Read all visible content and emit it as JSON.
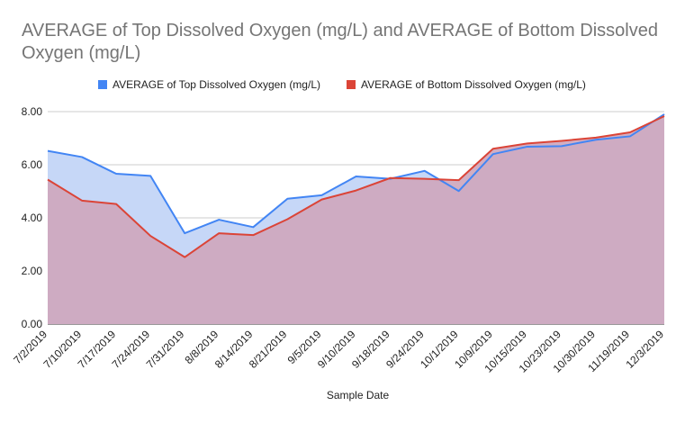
{
  "chart_data": {
    "type": "area",
    "title": "AVERAGE of Top Dissolved Oxygen (mg/L) and AVERAGE of Bottom Dissolved Oxygen (mg/L)",
    "xlabel": "Sample Date",
    "ylabel": "",
    "ylim": [
      0,
      8
    ],
    "yticks": [
      "0.00",
      "2.00",
      "4.00",
      "6.00",
      "8.00"
    ],
    "grid": true,
    "legend_position": "top",
    "categories": [
      "7/2/2019",
      "7/10/2019",
      "7/17/2019",
      "7/24/2019",
      "7/31/2019",
      "8/8/2019",
      "8/14/2019",
      "8/21/2019",
      "9/5/2019",
      "9/10/2019",
      "9/18/2019",
      "9/24/2019",
      "10/1/2019",
      "10/9/2019",
      "10/15/2019",
      "10/23/2019",
      "10/30/2019",
      "11/19/2019",
      "12/3/2019"
    ],
    "series": [
      {
        "name": "AVERAGE of Top Dissolved Oxygen (mg/L)",
        "color": "#4285f4",
        "fill": "#c6d7f7",
        "values": [
          6.52,
          6.29,
          5.66,
          5.58,
          3.42,
          3.93,
          3.65,
          4.72,
          4.85,
          5.56,
          5.47,
          5.77,
          5.01,
          6.4,
          6.68,
          6.7,
          6.94,
          7.07,
          7.9
        ]
      },
      {
        "name": "AVERAGE of Bottom Dissolved Oxygen (mg/L)",
        "color": "#db4437",
        "fill": "#cea7bd",
        "values": [
          5.44,
          4.65,
          4.52,
          3.32,
          2.52,
          3.42,
          3.35,
          3.95,
          4.69,
          5.03,
          5.5,
          5.47,
          5.42,
          6.6,
          6.8,
          6.9,
          7.02,
          7.22,
          7.83
        ]
      }
    ]
  }
}
